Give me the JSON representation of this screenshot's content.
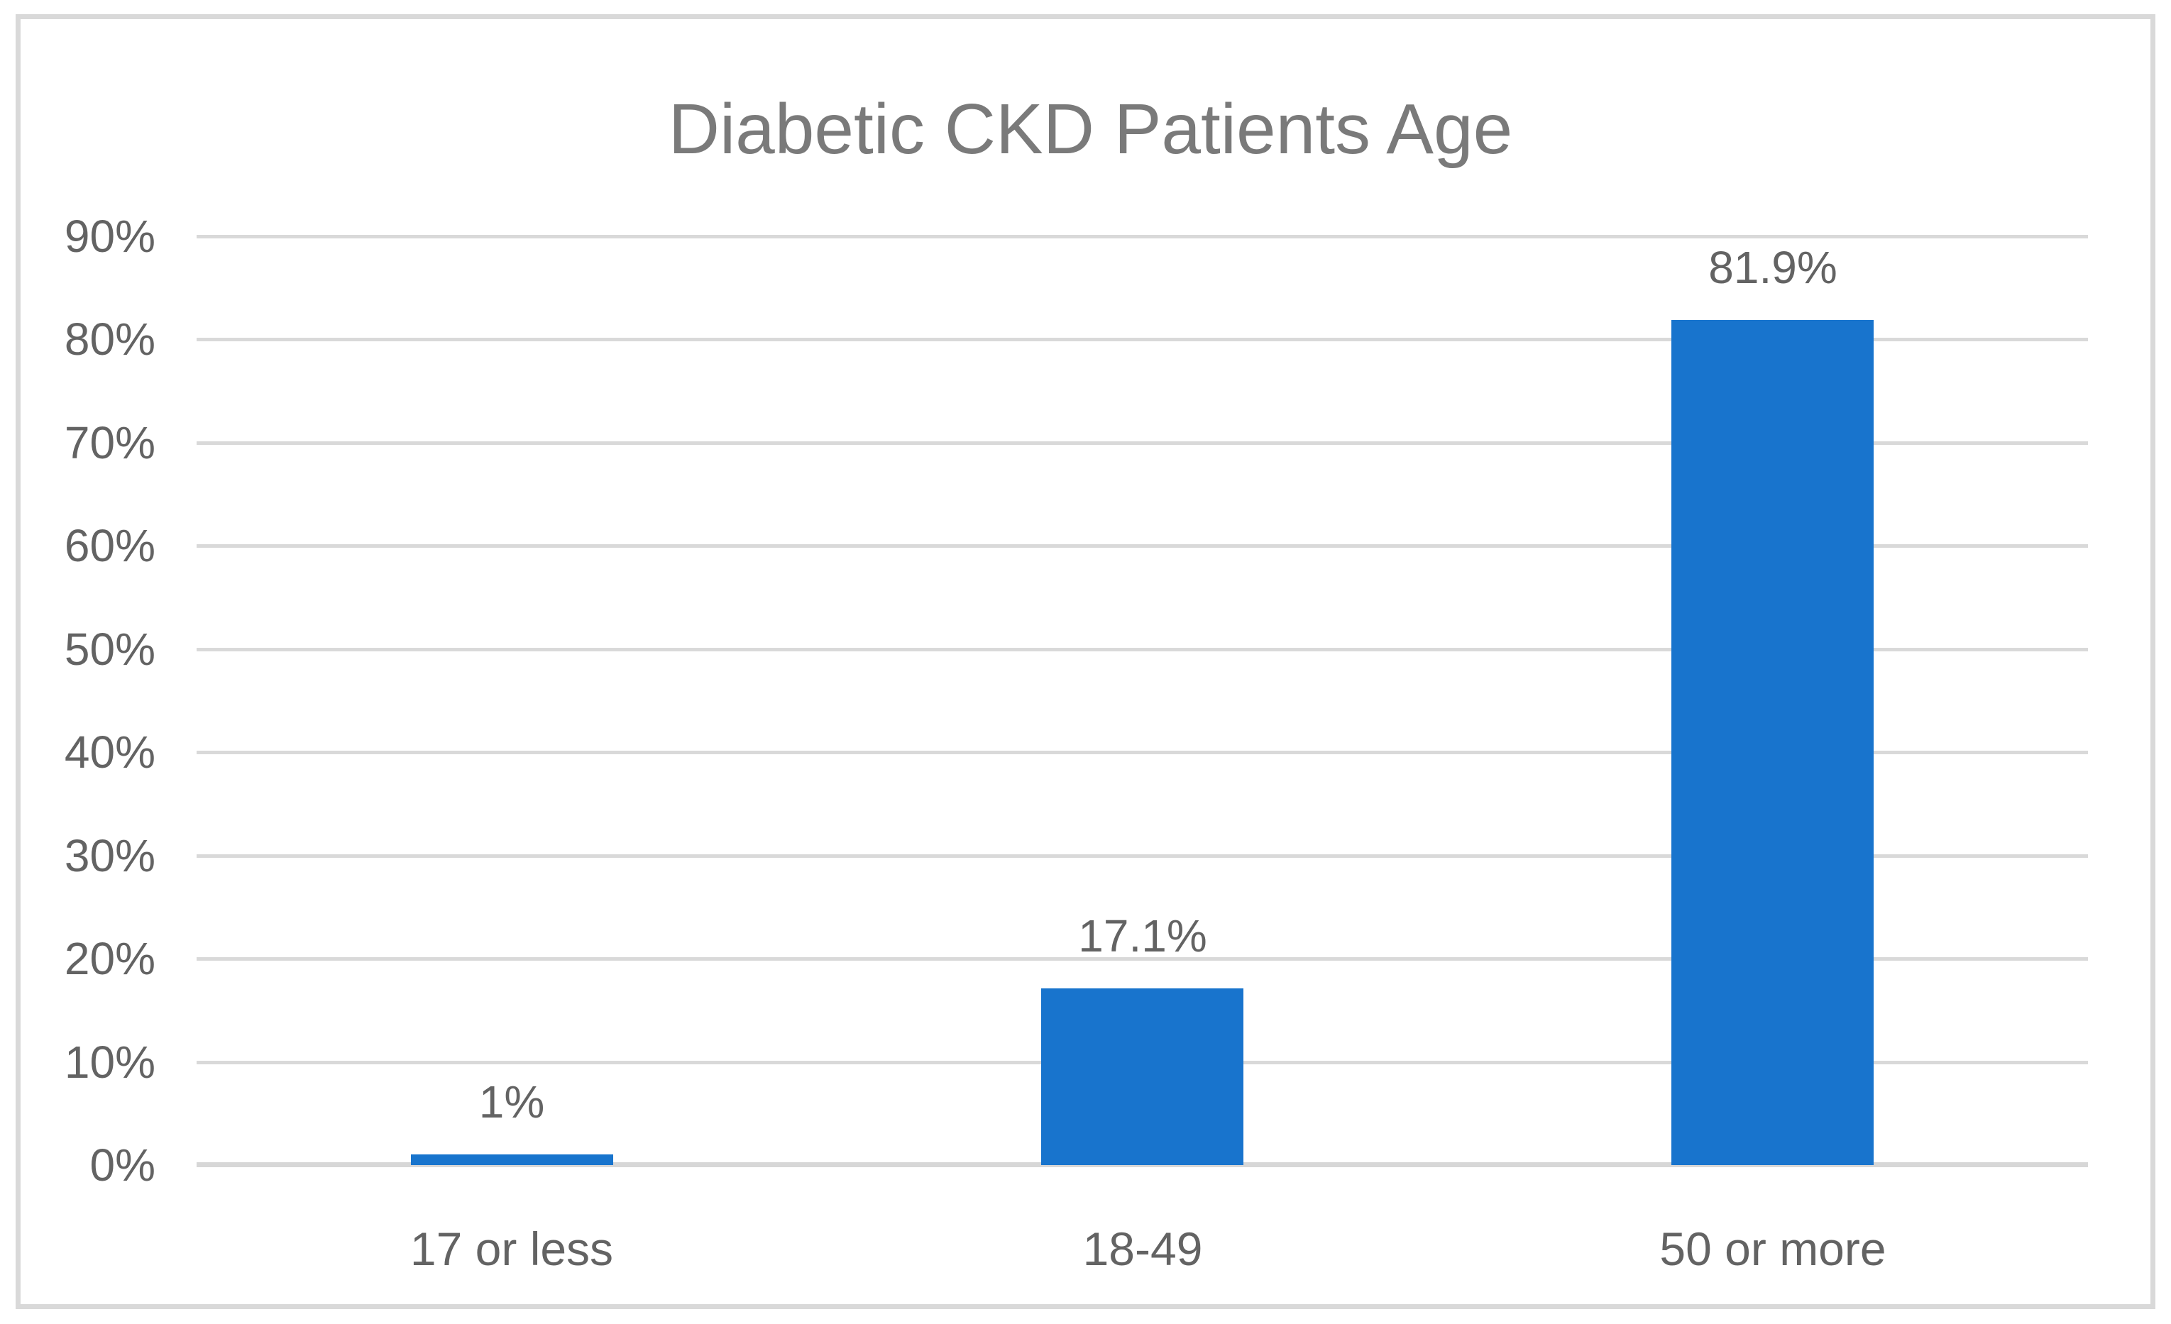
{
  "chart_data": {
    "type": "bar",
    "title": "Diabetic CKD Patients Age",
    "categories": [
      "17 or less",
      "18-49",
      "50 or more"
    ],
    "values": [
      1,
      17.1,
      81.9
    ],
    "data_labels": [
      "1%",
      "17.1%",
      "81.9%"
    ],
    "y_tick_labels": [
      "0%",
      "10%",
      "20%",
      "30%",
      "40%",
      "50%",
      "60%",
      "70%",
      "80%",
      "90%"
    ],
    "ylim": [
      0,
      90
    ],
    "y_tick_step": 10,
    "xlabel": "",
    "ylabel": "",
    "grid": true,
    "legend_position": "none",
    "colors": {
      "bar": "#1874CD",
      "gridline": "#D9D9D9",
      "axis_line": "#D7D7D7",
      "frame_border": "#D9D9D9",
      "title_text": "#7A7A7A",
      "label_text": "#636363",
      "background": "#FFFFFF"
    }
  }
}
